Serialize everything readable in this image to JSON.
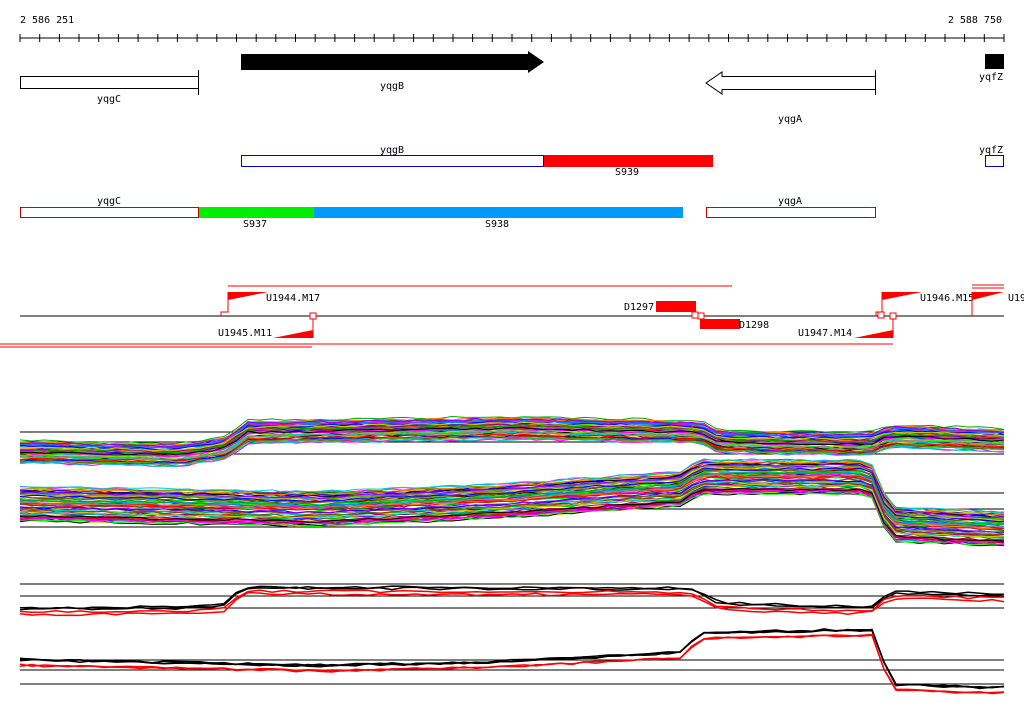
{
  "coords": {
    "start": "2 586 251",
    "end": "2 588 750"
  },
  "genes_top": [
    {
      "name": "yqgC",
      "fill": "none",
      "dir": "none"
    },
    {
      "name": "yqgB",
      "fill": "#000000",
      "dir": "forward"
    },
    {
      "name": "yqgA",
      "fill": "none",
      "dir": "reverse"
    },
    {
      "name": "yqfZ",
      "fill": "#000000",
      "dir": "forward"
    }
  ],
  "genes_mid": [
    {
      "name": "yqgB"
    },
    {
      "name": "yqfZ"
    }
  ],
  "segments_mid": [
    {
      "name": "S939",
      "color": "#ff0000"
    }
  ],
  "genes_low": [
    {
      "name": "yqgC"
    },
    {
      "name": "yqgA"
    }
  ],
  "segments_low": [
    {
      "name": "S937",
      "color": "#00ee00"
    },
    {
      "name": "S938",
      "color": "#0099ff"
    }
  ],
  "features": [
    {
      "name": "U1944.M17",
      "strand": "+"
    },
    {
      "name": "U1945.M11",
      "strand": "-"
    },
    {
      "name": "D1297",
      "strand": "+"
    },
    {
      "name": "D1298",
      "strand": "-"
    },
    {
      "name": "U1947.M14",
      "strand": "-"
    },
    {
      "name": "U1946.M15",
      "strand": "+"
    },
    {
      "name": "U19",
      "strand": "+"
    }
  ],
  "colors": {
    "gene_outline": "#000000",
    "mid_outline": "#0000cc",
    "low_outline": "#cc0000",
    "feature": "#ff0000"
  }
}
